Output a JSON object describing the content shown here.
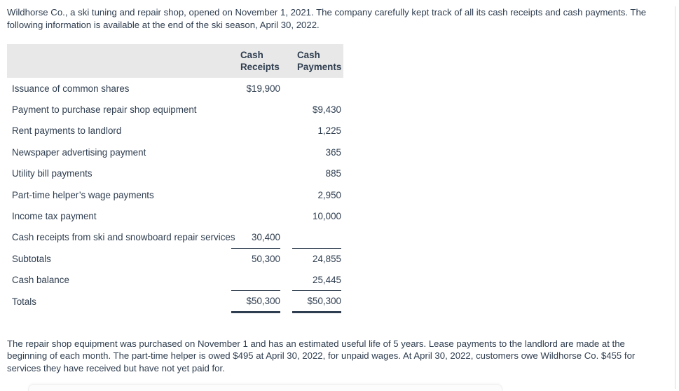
{
  "page": {
    "intro_paragraph": "Wildhorse Co., a ski tuning and repair shop, opened on November 1, 2021. The company carefully kept track of all its cash receipts and cash payments. The following information is available at the end of the ski season, April 30, 2022.",
    "footer_paragraph": "The repair shop equipment was purchased on November 1 and has an estimated useful life of 5 years. Lease payments to the landlord are made at the beginning of each month. The part-time helper is owed $495 at April 30, 2022, for unpaid wages. At April 30, 2022, customers owe Wildhorse Co. $455 for services they have received but have not yet paid for."
  },
  "table": {
    "headers": {
      "label": "",
      "cash_receipts": "Cash Receipts",
      "cash_payments": "Cash Payments"
    },
    "rows": [
      {
        "label": "Issuance of common shares",
        "receipts": "$19,900",
        "payments": ""
      },
      {
        "label": "Payment to purchase repair shop equipment",
        "receipts": "",
        "payments": "$9,430"
      },
      {
        "label": "Rent payments to landlord",
        "receipts": "",
        "payments": "1,225"
      },
      {
        "label": "Newspaper advertising payment",
        "receipts": "",
        "payments": "365"
      },
      {
        "label": "Utility bill payments",
        "receipts": "",
        "payments": "885"
      },
      {
        "label": "Part-time helper’s wage payments",
        "receipts": "",
        "payments": "2,950"
      },
      {
        "label": "Income tax payment",
        "receipts": "",
        "payments": "10,000"
      },
      {
        "label": "Cash receipts from ski and snowboard repair services",
        "receipts": "30,400",
        "payments": ""
      },
      {
        "label": "Subtotals",
        "receipts": "50,300",
        "payments": "24,855"
      },
      {
        "label": "Cash balance",
        "receipts": "",
        "payments": "25,445"
      },
      {
        "label": "Totals",
        "receipts": "$50,300",
        "payments": "$50,300"
      }
    ]
  },
  "colors": {
    "text": "#2e3d4f",
    "table_header_background": "#e8e8e8",
    "rule_line": "#2e3d4f"
  }
}
